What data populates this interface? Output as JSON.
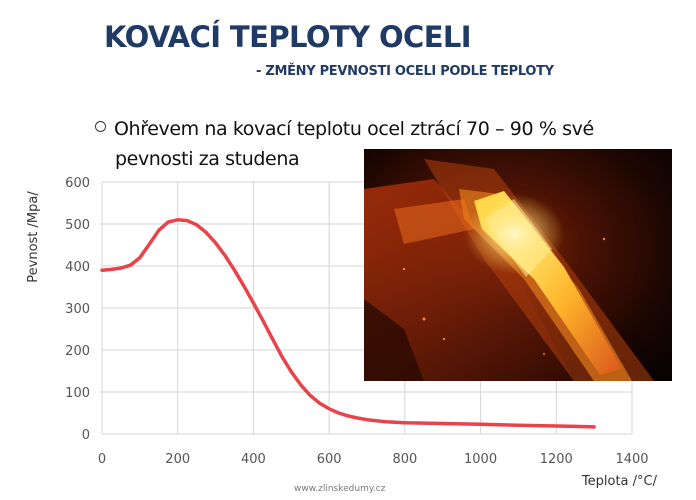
{
  "slide": {
    "title": "KOVACÍ TEPLOTY OCELI",
    "subtitle": "- ZMĚNY PEVNOSTI OCELI PODLE TEPLOTY",
    "bullet_line1": "Ohřevem na kovací teplotu ocel ztrácí 70 – 90 % své",
    "bullet_line2": "pevnosti za studena",
    "footer": "www.zlinskedumy.cz"
  },
  "colors": {
    "title": "#1f3a64",
    "curve": "#e8434a",
    "grid": "#d6d6d6"
  },
  "image": {
    "subject": "glowing-hot-steel-bar-photo"
  },
  "chart_data": {
    "type": "line",
    "xlabel": "Teplota /°C/",
    "ylabel": "Pevnost /Mpa/",
    "xlim": [
      0,
      1400
    ],
    "ylim": [
      0,
      600
    ],
    "xticks": [
      0,
      200,
      400,
      600,
      800,
      1000,
      1200,
      1400
    ],
    "yticks": [
      0,
      100,
      200,
      300,
      400,
      500,
      600
    ],
    "grid": true,
    "series": [
      {
        "color": "#e8434a",
        "x": [
          0,
          25,
          50,
          75,
          100,
          125,
          150,
          175,
          200,
          225,
          250,
          275,
          300,
          325,
          350,
          375,
          400,
          425,
          450,
          475,
          500,
          525,
          550,
          575,
          600,
          625,
          650,
          675,
          700,
          750,
          800,
          850,
          900,
          950,
          1000,
          1050,
          1100,
          1150,
          1200,
          1250,
          1300
        ],
        "y": [
          390,
          392,
          395,
          402,
          420,
          452,
          485,
          505,
          510,
          508,
          498,
          480,
          455,
          425,
          390,
          352,
          312,
          270,
          227,
          185,
          148,
          117,
          92,
          73,
          60,
          50,
          43,
          38,
          34,
          29,
          27,
          26,
          25,
          24,
          23,
          22,
          21,
          20,
          19,
          18,
          17
        ]
      }
    ]
  }
}
